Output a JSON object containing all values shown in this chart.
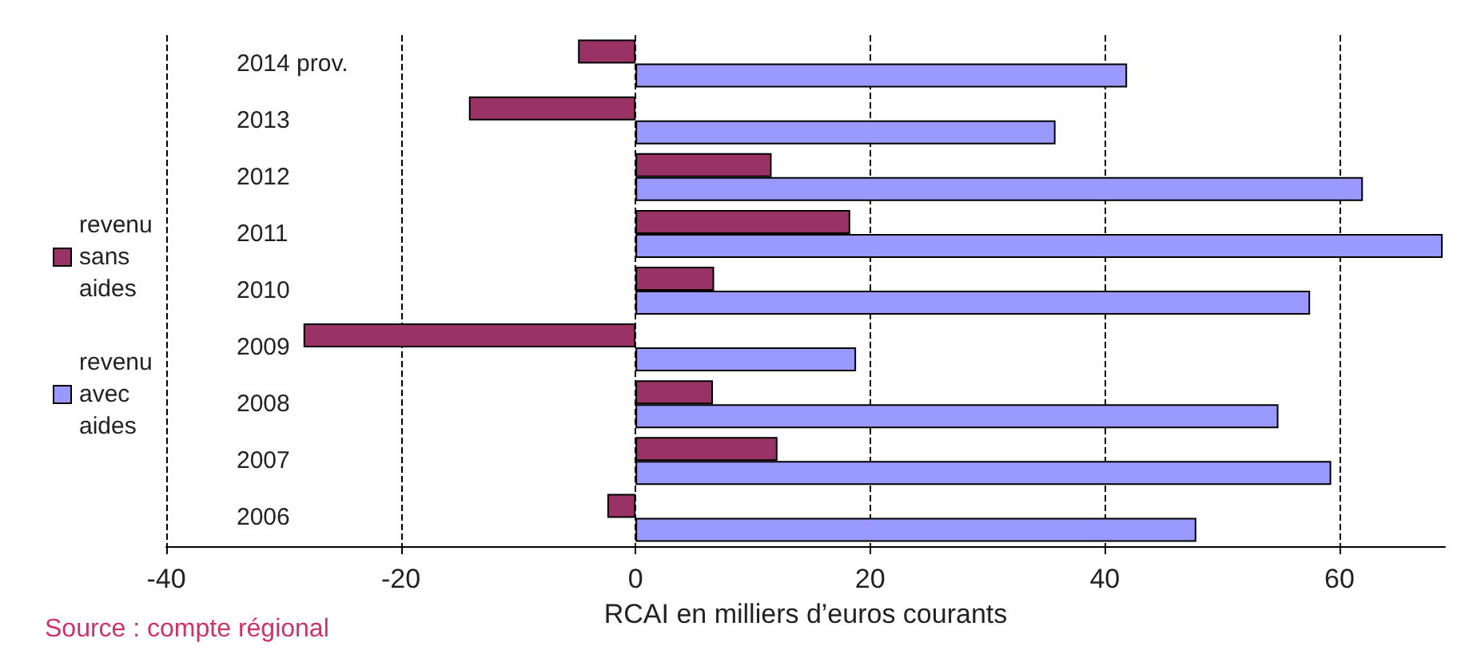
{
  "chart_data": {
    "type": "bar",
    "orientation": "horizontal",
    "xlabel": "RCAI en milliers d’euros courants",
    "categories": [
      "2014 prov.",
      "2013",
      "2012",
      "2011",
      "2010",
      "2009",
      "2008",
      "2007",
      "2006"
    ],
    "series": [
      {
        "name": "revenu sans aides",
        "color": "#993366",
        "values": [
          -4.9,
          -14.2,
          11.6,
          18.3,
          6.7,
          -28.3,
          6.6,
          12.1,
          -2.4
        ]
      },
      {
        "name": "revenu avec aides",
        "color": "#9999ff",
        "values": [
          41.9,
          35.8,
          62.0,
          68.8,
          57.5,
          18.8,
          54.8,
          59.3,
          47.8
        ]
      }
    ],
    "xlim": [
      -40,
      69
    ],
    "xticks": [
      -40,
      -20,
      0,
      20,
      40,
      60
    ],
    "grid": "x",
    "legend": "left",
    "annotations": [
      "Source : compte régional"
    ]
  }
}
